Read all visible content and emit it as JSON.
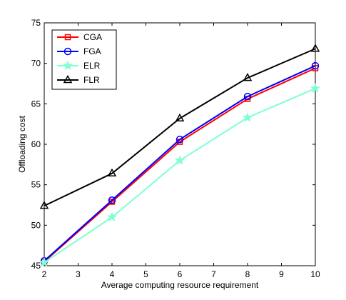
{
  "chart_data": {
    "type": "line",
    "xlabel": "Average computing resource requirement",
    "ylabel": "Offloading cost",
    "xlim": [
      2,
      10
    ],
    "ylim": [
      45,
      75
    ],
    "xticks": [
      2,
      3,
      4,
      5,
      6,
      7,
      8,
      9,
      10
    ],
    "yticks": [
      45,
      50,
      55,
      60,
      65,
      70,
      75
    ],
    "grid": false,
    "legend_position": "top-left",
    "x": [
      2,
      4,
      6,
      8,
      10
    ],
    "series": [
      {
        "name": "CGA",
        "color": "#ff0000",
        "marker": "square",
        "values": [
          45.5,
          52.9,
          60.3,
          65.6,
          69.4
        ]
      },
      {
        "name": "FGA",
        "color": "#0000ff",
        "marker": "circle",
        "values": [
          45.6,
          53.1,
          60.6,
          65.9,
          69.7
        ]
      },
      {
        "name": "ELR",
        "color": "#7fffd4",
        "marker": "star",
        "values": [
          45.4,
          51.0,
          58.0,
          63.3,
          66.9
        ]
      },
      {
        "name": "FLR",
        "color": "#000000",
        "marker": "triangle",
        "values": [
          52.4,
          56.4,
          63.2,
          68.2,
          71.8
        ]
      }
    ]
  }
}
